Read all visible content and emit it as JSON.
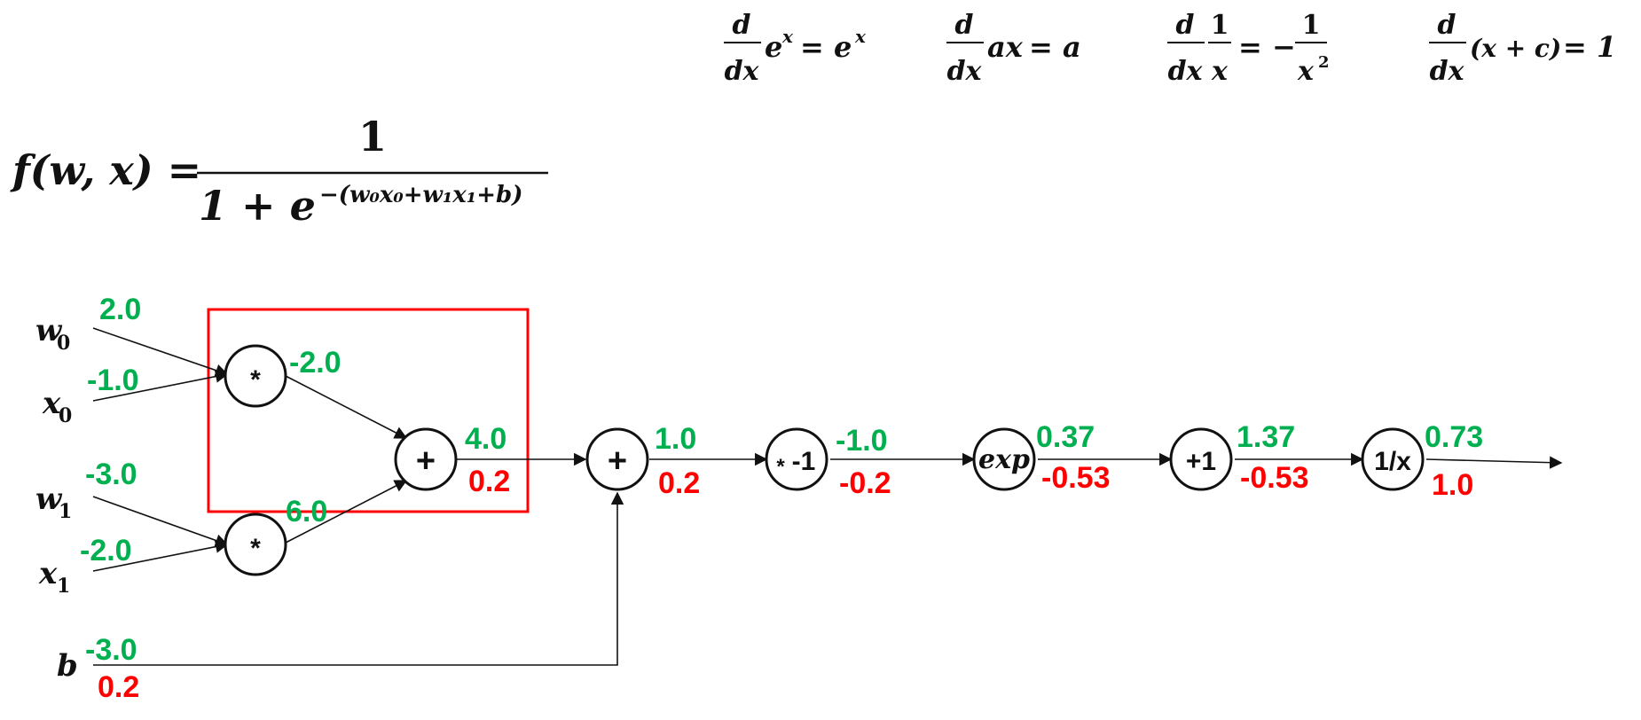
{
  "derivatives": [
    {
      "lhs_num": "d",
      "lhs_den": "dx",
      "expr": "e",
      "expr_sup": "x",
      "rhs": "= e",
      "rhs_sup": "x"
    },
    {
      "lhs_num": "d",
      "lhs_den": "dx",
      "expr": "ax",
      "rhs": "= a"
    },
    {
      "lhs_num": "d",
      "lhs_den": "dx",
      "frac_num": "1",
      "frac_den": "x",
      "rhs": "= −",
      "rhs_frac_num": "1",
      "rhs_frac_den": "x",
      "rhs_frac_den_sup": "2"
    },
    {
      "lhs_num": "d",
      "lhs_den": "dx",
      "expr": "(x + c)",
      "rhs": "= 1"
    }
  ],
  "formula": {
    "lhs": "f(w, x) =",
    "numerator": "1",
    "denominator_base": "1 + e",
    "exponent": "−(w₀x₀+w₁x₁+b)"
  },
  "inputs": {
    "w0": {
      "label": "w",
      "sub": "0",
      "forward": "2.0"
    },
    "x0": {
      "label": "x",
      "sub": "0",
      "forward": "-1.0"
    },
    "w1": {
      "label": "w",
      "sub": "1",
      "forward": "-3.0"
    },
    "x1": {
      "label": "x",
      "sub": "1",
      "forward": "-2.0"
    },
    "b": {
      "label": "b",
      "forward": "-3.0",
      "backward": "0.2"
    }
  },
  "nodes": {
    "mul0": {
      "op": "*",
      "forward": "-2.0"
    },
    "mul1": {
      "op": "*",
      "forward": "6.0"
    },
    "add0": {
      "op": "+",
      "forward": "4.0",
      "backward": "0.2"
    },
    "add1": {
      "op": "+",
      "forward": "1.0",
      "backward": "0.2"
    },
    "neg": {
      "op_star": "*",
      "op": "-1",
      "forward": "-1.0",
      "backward": "-0.2"
    },
    "exp": {
      "op": "exp",
      "forward": "0.37",
      "backward": "-0.53"
    },
    "plus1": {
      "op": "+1",
      "forward": "1.37",
      "backward": "-0.53"
    },
    "recip": {
      "op": "1/x",
      "forward": "0.73",
      "backward": "1.0"
    }
  },
  "colors": {
    "forward": "#00b050",
    "backward": "#ff0000",
    "highlight": "#ff0000",
    "ink": "#111111"
  }
}
